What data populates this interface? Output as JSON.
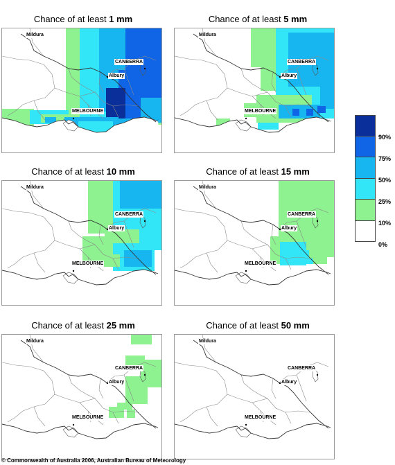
{
  "panels": [
    {
      "prefix": "Chance of at least ",
      "amount": "1 mm"
    },
    {
      "prefix": "Chance of at least ",
      "amount": "5 mm"
    },
    {
      "prefix": "Chance of at least ",
      "amount": "10 mm"
    },
    {
      "prefix": "Chance of at least ",
      "amount": "15 mm"
    },
    {
      "prefix": "Chance of at least ",
      "amount": "25 mm"
    },
    {
      "prefix": "Chance of at least ",
      "amount": "50 mm"
    }
  ],
  "cities": {
    "mildura": "Mildura",
    "canberra": "CANBERRA",
    "albury": "Albury",
    "melbourne": "MELBOURNE"
  },
  "legend": {
    "labels": [
      "90%",
      "75%",
      "50%",
      "25%",
      "10%",
      "0%"
    ],
    "colors": [
      "#0a2f9a",
      "#0f65e6",
      "#18b6f0",
      "#33e6f7",
      "#8df28f",
      "#ffffff"
    ]
  },
  "copyright": "© Commonwealth of Australia 2006, Australian Bureau of Meteorology"
}
